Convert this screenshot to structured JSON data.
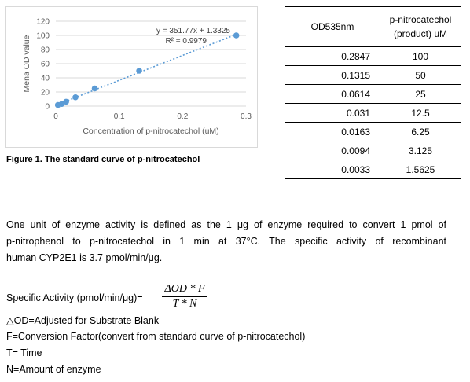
{
  "chart": {
    "equation": "y = 351.77x + 1.3325",
    "r2": "R² = 0.9979",
    "ylabel": "Mena OD value",
    "xlabel": "Concentration of p-nitrocatechol (uM)",
    "yticks": [
      "0",
      "20",
      "40",
      "60",
      "80",
      "100",
      "120"
    ],
    "xticks": [
      "0",
      "0.1",
      "0.2",
      "0.3"
    ],
    "colors": {
      "points": "#5b9bd5",
      "trendline": "#5b9bd5",
      "grid": "#d9d9d9"
    }
  },
  "chart_data": {
    "type": "scatter",
    "title": "",
    "xlabel": "Concentration of p-nitrocatechol (uM)",
    "ylabel": "Mena OD value",
    "xlim": [
      0,
      0.3
    ],
    "ylim": [
      0,
      120
    ],
    "grid": true,
    "series": [
      {
        "x": [
          0.2847,
          0.1315,
          0.0614,
          0.031,
          0.0163,
          0.0094,
          0.0033
        ],
        "y": [
          100,
          50,
          25,
          12.5,
          6.25,
          3.125,
          1.5625
        ]
      }
    ],
    "trendline": {
      "slope": 351.77,
      "intercept": 1.3325,
      "r2": 0.9979
    }
  },
  "figure_caption": "Figure 1. The standard curve of p-nitrocatechol",
  "table": {
    "headers": {
      "col1": "OD535nm",
      "col2_line1": "p-nitrocatechol",
      "col2_line2": "(product) uM"
    },
    "rows": [
      [
        "0.2847",
        "100"
      ],
      [
        "0.1315",
        "50"
      ],
      [
        "0.0614",
        "25"
      ],
      [
        "0.031",
        "12.5"
      ],
      [
        "0.0163",
        "6.25"
      ],
      [
        "0.0094",
        "3.125"
      ],
      [
        "0.0033",
        "1.5625"
      ]
    ]
  },
  "definition": {
    "line1": "One unit of enzyme activity is defined as the 1 μg of enzyme required to convert 1 pmol of",
    "line2": "p-nitrophenol to p-nitrocatechol in 1 min at 37°C. The specific activity of recombinant",
    "line3": "human CYP2E1 is 3.7 pmol/min/μg."
  },
  "formula": {
    "label": "Specific Activity (pmol/min/μg)=",
    "numerator": "ΔOD * F",
    "denominator": "T * N"
  },
  "definitions": [
    "△OD=Adjusted for Substrate Blank",
    "F=Conversion Factor(convert from standard curve of p-nitrocatechol)",
    "T= Time",
    "N=Amount of enzyme"
  ]
}
